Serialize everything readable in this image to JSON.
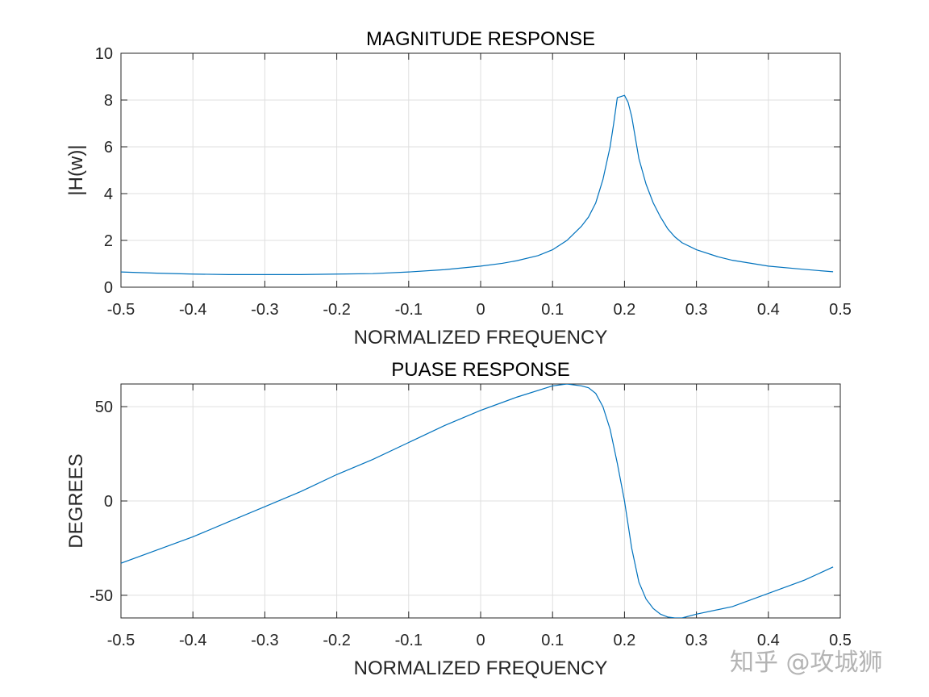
{
  "chart_data": [
    {
      "type": "line",
      "title": "MAGNITUDE RESPONSE",
      "xlabel": "NORMALIZED FREQUENCY",
      "ylabel": "|H(w)|",
      "xlim": [
        -0.5,
        0.5
      ],
      "ylim": [
        0,
        10
      ],
      "xticks": [
        "-0.5",
        "-0.4",
        "-0.3",
        "-0.2",
        "-0.1",
        "0",
        "0.1",
        "0.2",
        "0.3",
        "0.4",
        "0.5"
      ],
      "yticks": [
        "0",
        "2",
        "4",
        "6",
        "8",
        "10"
      ],
      "grid": true,
      "color": "#0072bd",
      "x": [
        -0.5,
        -0.45,
        -0.4,
        -0.35,
        -0.3,
        -0.25,
        -0.2,
        -0.15,
        -0.1,
        -0.05,
        0,
        0.03,
        0.05,
        0.08,
        0.1,
        0.12,
        0.14,
        0.15,
        0.16,
        0.17,
        0.18,
        0.185,
        0.19,
        0.195,
        0.2,
        0.205,
        0.21,
        0.22,
        0.23,
        0.24,
        0.25,
        0.26,
        0.27,
        0.28,
        0.3,
        0.33,
        0.35,
        0.4,
        0.45,
        0.49
      ],
      "y": [
        0.65,
        0.6,
        0.56,
        0.54,
        0.54,
        0.54,
        0.56,
        0.58,
        0.65,
        0.75,
        0.9,
        1.02,
        1.13,
        1.35,
        1.6,
        2.0,
        2.6,
        3.0,
        3.6,
        4.6,
        6.0,
        7.0,
        8.1,
        8.15,
        8.2,
        7.9,
        7.3,
        5.5,
        4.4,
        3.6,
        3.0,
        2.5,
        2.15,
        1.9,
        1.6,
        1.3,
        1.15,
        0.9,
        0.76,
        0.66
      ]
    },
    {
      "type": "line",
      "title": "PUASE RESPONSE",
      "xlabel": "NORMALIZED FREQUENCY",
      "ylabel": "DEGREES",
      "xlim": [
        -0.5,
        0.5
      ],
      "ylim": [
        -62,
        62
      ],
      "xticks": [
        "-0.5",
        "-0.4",
        "-0.3",
        "-0.2",
        "-0.1",
        "0",
        "0.1",
        "0.2",
        "0.3",
        "0.4",
        "0.5"
      ],
      "yticks": [
        "-50",
        "0",
        "50"
      ],
      "grid": true,
      "color": "#0072bd",
      "x": [
        -0.5,
        -0.45,
        -0.4,
        -0.35,
        -0.3,
        -0.25,
        -0.2,
        -0.15,
        -0.1,
        -0.05,
        0,
        0.05,
        0.1,
        0.12,
        0.14,
        0.15,
        0.16,
        0.17,
        0.18,
        0.19,
        0.2,
        0.21,
        0.22,
        0.23,
        0.24,
        0.25,
        0.26,
        0.27,
        0.28,
        0.3,
        0.35,
        0.4,
        0.45,
        0.49
      ],
      "y": [
        -33,
        -26,
        -19,
        -11,
        -3,
        5,
        14,
        22,
        31,
        40,
        48,
        55,
        61,
        62,
        61,
        60,
        57,
        50,
        38,
        20,
        0,
        -25,
        -43,
        -52,
        -57,
        -60,
        -61.5,
        -62,
        -62,
        -60,
        -56,
        -49,
        -42,
        -35
      ]
    }
  ],
  "watermark": "知乎 @攻城狮"
}
